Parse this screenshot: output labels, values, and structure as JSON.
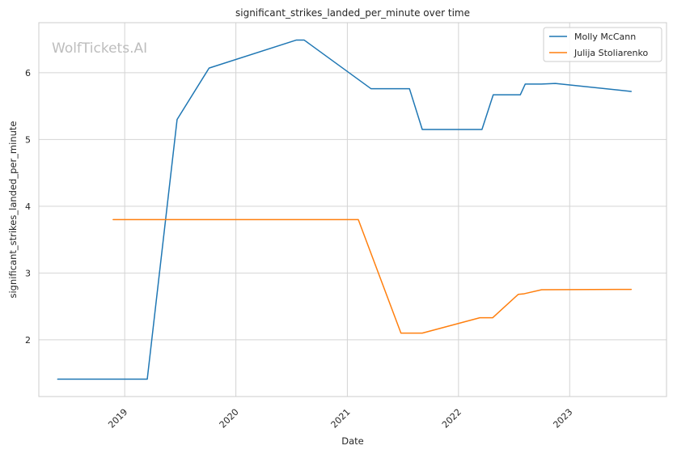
{
  "chart_data": {
    "type": "line",
    "title": "significant_strikes_landed_per_minute over time",
    "xlabel": "Date",
    "ylabel": "significant_strikes_landed_per_minute",
    "watermark": "WolfTickets.AI",
    "grid": true,
    "legend_position": "top-right",
    "xlim": [
      "2018-03-25",
      "2023-11-15"
    ],
    "ylim": [
      1.15,
      6.75
    ],
    "x_ticks": [
      "2019-01-01",
      "2020-01-01",
      "2021-01-01",
      "2022-01-01",
      "2023-01-01"
    ],
    "x_tick_labels": [
      "2019",
      "2020",
      "2021",
      "2022",
      "2023"
    ],
    "y_ticks": [
      2,
      3,
      4,
      5,
      6
    ],
    "y_tick_labels": [
      "2",
      "3",
      "4",
      "5",
      "6"
    ],
    "series": [
      {
        "name": "Molly McCann",
        "color": "#1f77b4",
        "points": [
          [
            "2018-05-26",
            1.41
          ],
          [
            "2019-03-16",
            1.41
          ],
          [
            "2019-06-22",
            5.3
          ],
          [
            "2019-10-05",
            6.07
          ],
          [
            "2020-07-18",
            6.49
          ],
          [
            "2020-08-12",
            6.49
          ],
          [
            "2021-03-20",
            5.76
          ],
          [
            "2021-07-24",
            5.76
          ],
          [
            "2021-09-04",
            5.15
          ],
          [
            "2022-03-19",
            5.15
          ],
          [
            "2022-04-25",
            5.67
          ],
          [
            "2022-07-23",
            5.67
          ],
          [
            "2022-08-08",
            5.83
          ],
          [
            "2022-09-30",
            5.83
          ],
          [
            "2022-11-15",
            5.84
          ],
          [
            "2023-07-22",
            5.72
          ]
        ]
      },
      {
        "name": "Julija Stoliarenko",
        "color": "#ff7f0e",
        "points": [
          [
            "2018-11-24",
            3.8
          ],
          [
            "2021-02-06",
            3.8
          ],
          [
            "2021-06-26",
            2.1
          ],
          [
            "2021-09-04",
            2.1
          ],
          [
            "2022-03-12",
            2.33
          ],
          [
            "2022-04-23",
            2.33
          ],
          [
            "2022-07-16",
            2.68
          ],
          [
            "2022-08-05",
            2.69
          ],
          [
            "2022-10-01",
            2.75
          ],
          [
            "2023-07-22",
            2.755
          ]
        ]
      }
    ]
  }
}
